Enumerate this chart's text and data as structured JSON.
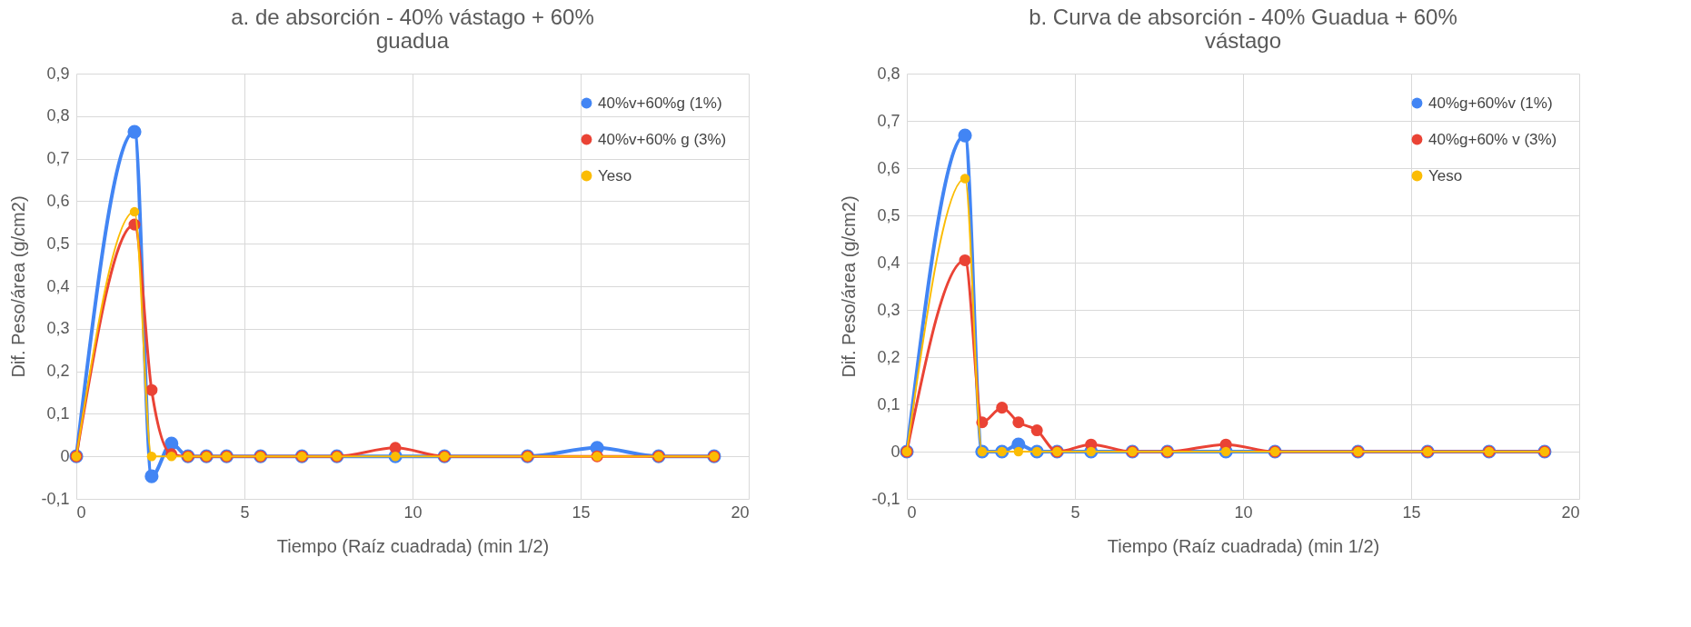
{
  "chart_data": [
    {
      "type": "line",
      "title": "a. de absorción - 40% vástago + 60% guadua",
      "xlabel": "Tiempo (Raíz cuadrada) (min 1/2)",
      "ylabel": "Dif. Peso/área (g/cm2)",
      "x": [
        0,
        1.73,
        2.24,
        2.83,
        3.32,
        3.87,
        4.47,
        5.48,
        6.71,
        7.75,
        9.49,
        10.95,
        13.42,
        15.49,
        17.32,
        18.97
      ],
      "series": [
        {
          "name": " 40%v+60%g (1%)",
          "color": "#4285f4",
          "values": [
            0,
            0.763,
            -0.047,
            0.03,
            0,
            0,
            0,
            0,
            0,
            0,
            0,
            0,
            0,
            0.02,
            0,
            0
          ]
        },
        {
          "name": "40%v+60% g (3%)",
          "color": "#ea4335",
          "values": [
            0,
            0.545,
            0.156,
            0.005,
            0,
            0,
            0,
            0,
            0,
            0,
            0.02,
            0,
            0,
            0,
            0,
            0
          ]
        },
        {
          "name": "Yeso",
          "color": "#fbbc04",
          "values": [
            0,
            0.575,
            0,
            0,
            0,
            0,
            0,
            0,
            0,
            0,
            0,
            0,
            0,
            0,
            0,
            0
          ]
        }
      ],
      "xlim": [
        0,
        20
      ],
      "xticks": [
        0,
        5,
        10,
        15,
        20
      ],
      "ylim": [
        -0.1,
        0.9
      ],
      "yticks": [
        {
          "value": -0.1,
          "label": "-0,1"
        },
        0,
        {
          "value": 0.1,
          "label": "0,1"
        },
        {
          "value": 0.2,
          "label": "0,2"
        },
        {
          "value": 0.3,
          "label": "0,3"
        },
        {
          "value": 0.4,
          "label": "0,4"
        },
        {
          "value": 0.5,
          "label": "0,5"
        },
        {
          "value": 0.6,
          "label": "0,6"
        },
        {
          "value": 0.7,
          "label": "0,7"
        },
        {
          "value": 0.8,
          "label": "0,8"
        },
        {
          "value": 0.9,
          "label": "0,9"
        }
      ],
      "grid": true,
      "legend": "top right",
      "marker": "circle",
      "line_style": "solid"
    },
    {
      "type": "line",
      "title": "b. Curva de absorción - 40% Guadua + 60% vástago",
      "xlabel": "Tiempo (Raíz cuadrada) (min 1/2)",
      "ylabel": "Dif. Peso/área (g/cm2)",
      "x": [
        0,
        1.73,
        2.24,
        2.83,
        3.32,
        3.87,
        4.47,
        5.48,
        6.71,
        7.75,
        9.49,
        10.95,
        13.42,
        15.49,
        17.32,
        18.97
      ],
      "series": [
        {
          "name": " 40%g+60%v (1%)",
          "color": "#4285f4",
          "values": [
            0,
            0.669,
            0,
            0,
            0.015,
            0,
            0,
            0,
            0,
            0,
            0,
            0,
            0,
            0,
            0,
            0
          ]
        },
        {
          "name": "40%g+60% v (3%)",
          "color": "#ea4335",
          "values": [
            0,
            0.405,
            0.062,
            0.093,
            0.062,
            0.045,
            0,
            0.015,
            0,
            0,
            0.015,
            0,
            0,
            0,
            0,
            0
          ]
        },
        {
          "name": "Yeso",
          "color": "#fbbc04",
          "values": [
            0,
            0.578,
            0,
            0,
            0,
            0,
            0,
            0,
            0,
            0,
            0,
            0,
            0,
            0,
            0,
            0
          ]
        }
      ],
      "xlim": [
        0,
        20
      ],
      "xticks": [
        0,
        5,
        10,
        15,
        20
      ],
      "ylim": [
        -0.1,
        0.8
      ],
      "yticks": [
        {
          "value": -0.1,
          "label": "-0,1"
        },
        0,
        {
          "value": 0.1,
          "label": "0,1"
        },
        {
          "value": 0.2,
          "label": "0,2"
        },
        {
          "value": 0.3,
          "label": "0,3"
        },
        {
          "value": 0.4,
          "label": "0,4"
        },
        {
          "value": 0.5,
          "label": "0,5"
        },
        {
          "value": 0.6,
          "label": "0,6"
        },
        {
          "value": 0.7,
          "label": "0,7"
        },
        {
          "value": 0.8,
          "label": "0,8"
        }
      ],
      "grid": true,
      "legend": "top right",
      "marker": "circle",
      "line_style": "solid"
    }
  ]
}
